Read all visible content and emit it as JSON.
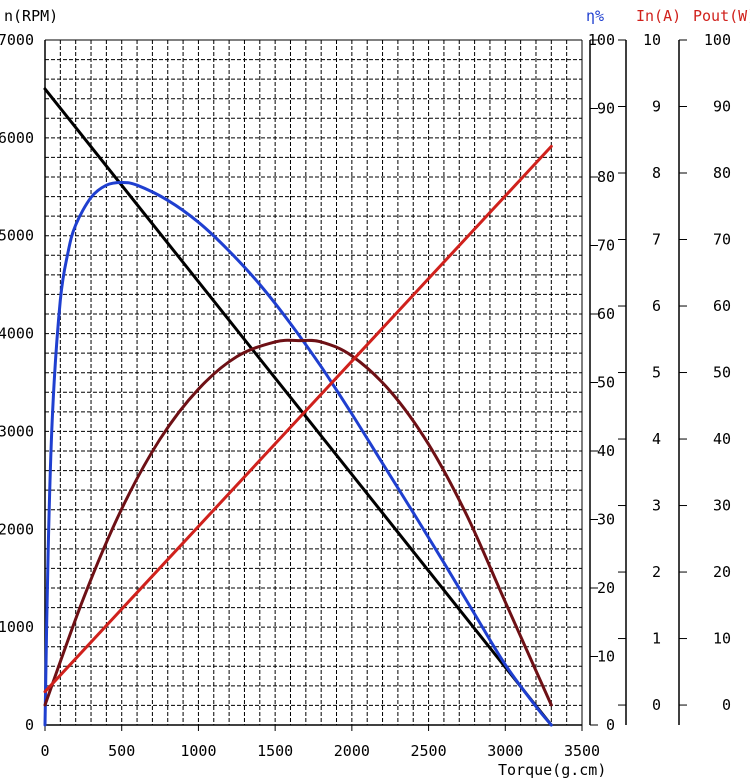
{
  "chart_data": {
    "type": "line",
    "title": "",
    "xlabel": "Torque(g.cm)",
    "xlim": [
      0,
      3500
    ],
    "x_ticks": [
      0,
      500,
      1000,
      1500,
      2000,
      2500,
      3000,
      3500
    ],
    "grid": true,
    "axes": {
      "speed": {
        "label": "n(RPM)",
        "ylim": [
          0,
          7000
        ],
        "ticks": [
          0,
          1000,
          2000,
          3000,
          4000,
          5000,
          6000,
          7000
        ],
        "color": "#000000"
      },
      "efficiency": {
        "label": "η%",
        "ylim": [
          0,
          100
        ],
        "ticks": [
          0,
          10,
          20,
          30,
          40,
          50,
          60,
          70,
          80,
          90,
          100
        ],
        "color": "#1f3fd0"
      },
      "current": {
        "label": "In(A)",
        "ylim": [
          -0.3,
          10
        ],
        "ticks": [
          0,
          1,
          2,
          3,
          4,
          5,
          6,
          7,
          8,
          9,
          10
        ],
        "color": "#d0211c"
      },
      "power": {
        "label": "Pout(W)",
        "ylim": [
          -3,
          100
        ],
        "ticks": [
          0,
          10,
          20,
          30,
          40,
          50,
          60,
          70,
          80,
          90,
          100
        ],
        "color": "#d0211c"
      }
    },
    "series": [
      {
        "axis": "speed",
        "color": "#000000",
        "x": [
          0,
          3300
        ],
        "values": [
          6500,
          0
        ]
      },
      {
        "axis": "efficiency",
        "color": "#1f3fd0",
        "x": [
          0,
          20,
          50,
          100,
          150,
          200,
          300,
          400,
          500,
          600,
          800,
          1000,
          1200,
          1400,
          1600,
          1800,
          2000,
          2200,
          2400,
          2600,
          2800,
          3000,
          3200,
          3300
        ],
        "values": [
          0,
          25,
          46,
          62,
          69,
          73,
          77,
          78.8,
          79.2,
          78.8,
          76.6,
          73.4,
          69.2,
          64.3,
          58.6,
          52.3,
          45.4,
          38.2,
          31,
          23.7,
          16.2,
          8.8,
          2.7,
          0
        ]
      },
      {
        "axis": "power",
        "color": "#6e1015",
        "x": [
          0,
          250,
          500,
          750,
          1000,
          1250,
          1500,
          1650,
          1800,
          2000,
          2250,
          2500,
          2750,
          3000,
          3300
        ],
        "values": [
          0,
          16,
          29.5,
          40,
          47.5,
          52.4,
          54.6,
          54.8,
          54.6,
          52.5,
          47.2,
          39.2,
          28.5,
          15.5,
          0
        ]
      },
      {
        "axis": "current",
        "color": "#d0211c",
        "x": [
          0,
          3300
        ],
        "values": [
          0.2,
          8.4
        ]
      }
    ]
  }
}
